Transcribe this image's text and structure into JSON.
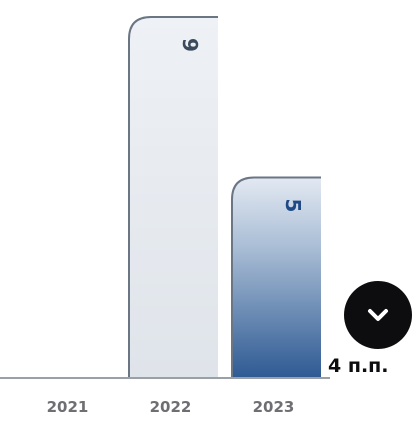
{
  "chart_data": {
    "type": "bar",
    "categories": [
      "2021",
      "2022",
      "2023"
    ],
    "values": [
      0,
      9,
      5
    ],
    "value_labels": [
      "",
      "9",
      "5"
    ],
    "colors": {
      "bar_light_top": "#eef1f5",
      "bar_light_bottom": "#dfe4ea",
      "bar_dark_top": "#e3e9f2",
      "bar_dark_bottom": "#2e5a93",
      "outline": "#6b7684",
      "label_light": "#3b4a5c",
      "label_dark": "#1f4a86",
      "axis": "#9aa0a6"
    },
    "ylim": [
      0,
      9
    ],
    "grid": false
  },
  "badge": {
    "icon": "chevron-down-icon",
    "text": "4 п.п."
  }
}
